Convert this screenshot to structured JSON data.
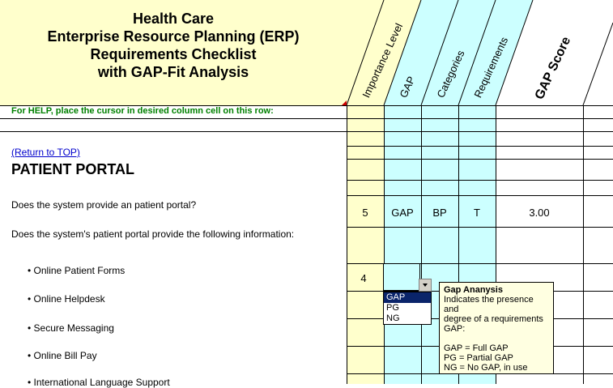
{
  "title_lines": [
    "Health Care",
    "Enterprise Resource Planning (ERP)",
    "Requirements Checklist",
    "with GAP-Fit Analysis"
  ],
  "column_headers": {
    "importance": "Importance Level",
    "gap": "GAP",
    "categories": "Categories",
    "requirements": "Requirements",
    "gap_score": "GAP Score"
  },
  "help_text": "For HELP, place the cursor in desired column cell on this row:",
  "return_link": "(Return to TOP)",
  "section_title": "PATIENT PORTAL",
  "rows": [
    {
      "text": "Does the system provide an patient portal?",
      "importance": "5",
      "gap": "GAP",
      "category": "BP",
      "requirement": "T",
      "score": "3.00"
    },
    {
      "text": "Does the system's patient portal provide the following information:"
    },
    {
      "text": "• Online Patient Forms",
      "importance": "4"
    },
    {
      "text": "• Online Helpdesk"
    },
    {
      "text": "• Secure Messaging"
    },
    {
      "text": "• Online Bill Pay"
    },
    {
      "text": "• International Language Support"
    }
  ],
  "dropdown": {
    "options": [
      "GAP",
      "PG",
      "NG"
    ],
    "selected_index": 0
  },
  "tooltip": {
    "title": "Gap Ananysis",
    "lines": [
      "Indicates the presence and",
      "degree of a requirements",
      "GAP:",
      "",
      "GAP  = Full GAP",
      "PG = Partial GAP",
      "NG  = No GAP, in use"
    ]
  },
  "colors": {
    "yellow_fill": "#ffffcc",
    "cyan_fill": "#ccffff",
    "help_text": "#008000",
    "link": "#0000cc",
    "selection": "#0a246a"
  }
}
